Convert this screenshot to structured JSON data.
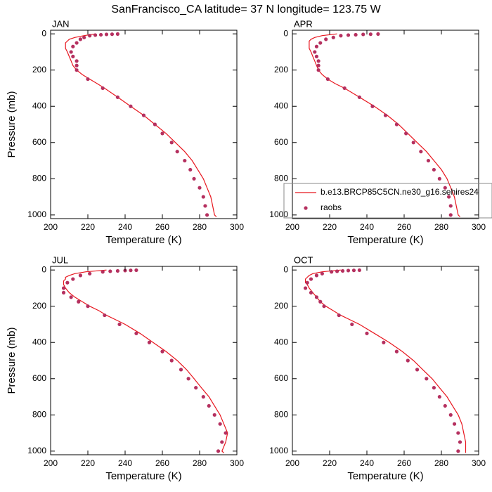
{
  "title": "SanFrancisco_CA  latitude= 37 N longitude= 123.75 W",
  "chart_data": [
    {
      "type": "line",
      "title": "JAN",
      "xlabel": "Temperature (K)",
      "ylabel": "Pressure (mb)",
      "xlim": [
        200,
        300
      ],
      "ylim": [
        1020,
        -20
      ],
      "xticks": [
        200,
        220,
        240,
        260,
        280,
        300
      ],
      "yticks": [
        0,
        200,
        400,
        600,
        800,
        1000
      ],
      "series": [
        {
          "mode": "line",
          "color": "#e8161e",
          "x": [
            224,
            218,
            213,
            210,
            209,
            208,
            208,
            208,
            208,
            209,
            210,
            211,
            212,
            214,
            217,
            221,
            225,
            229,
            236,
            243,
            250,
            256,
            262,
            267,
            272,
            276,
            279,
            282,
            284,
            286,
            287,
            288,
            289
          ],
          "y": [
            0,
            10,
            20,
            30,
            40,
            50,
            60,
            70,
            80,
            100,
            125,
            150,
            175,
            200,
            225,
            250,
            275,
            300,
            350,
            400,
            450,
            500,
            550,
            600,
            650,
            700,
            750,
            800,
            850,
            900,
            950,
            1000,
            1010
          ]
        },
        {
          "mode": "markers",
          "color": "#b5305f",
          "x": [
            236,
            233,
            230,
            227,
            224,
            221,
            218,
            216,
            214,
            212,
            211,
            212,
            214,
            214,
            214,
            220,
            228,
            236,
            243,
            250,
            256,
            260,
            265,
            268,
            272,
            275,
            277,
            280,
            282,
            283,
            284
          ],
          "y": [
            1,
            2,
            3,
            5,
            7,
            10,
            20,
            30,
            50,
            70,
            100,
            125,
            150,
            175,
            200,
            250,
            300,
            350,
            400,
            450,
            500,
            550,
            600,
            650,
            700,
            750,
            800,
            850,
            900,
            950,
            1000
          ]
        }
      ]
    },
    {
      "type": "line",
      "title": "APR",
      "xlabel": "Temperature (K)",
      "legend": true,
      "xlim": [
        200,
        300
      ],
      "ylim": [
        1020,
        -20
      ],
      "xticks": [
        200,
        220,
        240,
        260,
        280,
        300
      ],
      "yticks": [
        0,
        200,
        400,
        600,
        800,
        1000
      ],
      "series": [
        {
          "name": "b.e13.BRCP85C5CN.ne30_g16.sehires24",
          "mode": "line",
          "color": "#e8161e",
          "x": [
            224,
            216,
            212,
            210,
            209,
            209,
            209,
            209,
            209,
            210,
            211,
            212,
            213,
            214,
            216,
            219,
            223,
            228,
            236,
            244,
            251,
            257,
            262,
            267,
            272,
            276,
            280,
            283,
            285,
            287,
            288,
            289,
            290
          ],
          "y": [
            0,
            10,
            20,
            30,
            40,
            50,
            60,
            70,
            80,
            100,
            125,
            150,
            175,
            200,
            225,
            250,
            275,
            300,
            350,
            400,
            450,
            500,
            550,
            600,
            650,
            700,
            750,
            800,
            850,
            900,
            950,
            1000,
            1010
          ]
        },
        {
          "name": "raobs",
          "mode": "markers",
          "color": "#b5305f",
          "x": [
            246,
            242,
            238,
            234,
            230,
            226,
            222,
            218,
            215,
            213,
            212,
            213,
            214,
            214,
            214,
            219,
            228,
            236,
            243,
            250,
            256,
            261,
            265,
            269,
            273,
            276,
            279,
            282,
            284,
            285,
            285
          ],
          "y": [
            1,
            2,
            3,
            5,
            7,
            10,
            20,
            30,
            50,
            70,
            100,
            125,
            150,
            175,
            200,
            250,
            300,
            350,
            400,
            450,
            500,
            550,
            600,
            650,
            700,
            750,
            800,
            850,
            900,
            950,
            1000
          ]
        }
      ]
    },
    {
      "type": "line",
      "title": "JUL",
      "xlabel": "Temperature (K)",
      "ylabel": "Pressure (mb)",
      "xlim": [
        200,
        300
      ],
      "ylim": [
        1020,
        -20
      ],
      "xticks": [
        200,
        220,
        240,
        260,
        280,
        300
      ],
      "yticks": [
        0,
        200,
        400,
        600,
        800,
        1000
      ],
      "series": [
        {
          "mode": "line",
          "color": "#e8161e",
          "x": [
            230,
            219,
            213,
            210,
            208,
            208,
            207,
            207,
            207,
            208,
            210,
            213,
            217,
            221,
            226,
            230,
            235,
            240,
            248,
            255,
            262,
            268,
            273,
            277,
            281,
            285,
            288,
            291,
            293,
            295,
            294,
            292,
            293
          ],
          "y": [
            0,
            10,
            20,
            30,
            40,
            50,
            60,
            70,
            80,
            100,
            125,
            150,
            175,
            200,
            225,
            250,
            275,
            300,
            350,
            400,
            450,
            500,
            550,
            600,
            650,
            700,
            750,
            800,
            850,
            900,
            950,
            1000,
            1010
          ]
        },
        {
          "mode": "markers",
          "color": "#b5305f",
          "x": [
            246,
            243,
            240,
            236,
            232,
            228,
            221,
            216,
            212,
            209,
            207,
            207,
            211,
            215,
            220,
            229,
            237,
            246,
            253,
            260,
            265,
            270,
            274,
            278,
            282,
            285,
            288,
            291,
            294,
            292,
            290
          ],
          "y": [
            1,
            2,
            3,
            5,
            7,
            10,
            20,
            30,
            50,
            70,
            100,
            125,
            150,
            175,
            200,
            250,
            300,
            350,
            400,
            450,
            500,
            550,
            600,
            650,
            700,
            750,
            800,
            850,
            900,
            950,
            1000
          ]
        }
      ]
    },
    {
      "type": "line",
      "title": "OCT",
      "xlabel": "Temperature (K)",
      "xlim": [
        200,
        300
      ],
      "ylim": [
        1020,
        -20
      ],
      "xticks": [
        200,
        220,
        240,
        260,
        280,
        300
      ],
      "yticks": [
        0,
        200,
        400,
        600,
        800,
        1000
      ],
      "series": [
        {
          "mode": "line",
          "color": "#e8161e",
          "x": [
            226,
            216,
            211,
            209,
            208,
            207,
            207,
            207,
            208,
            209,
            211,
            213,
            215,
            218,
            222,
            226,
            231,
            236,
            244,
            252,
            259,
            265,
            270,
            275,
            279,
            283,
            286,
            289,
            291,
            292,
            293,
            293,
            293
          ],
          "y": [
            0,
            10,
            20,
            30,
            40,
            50,
            60,
            70,
            80,
            100,
            125,
            150,
            175,
            200,
            225,
            250,
            275,
            300,
            350,
            400,
            450,
            500,
            550,
            600,
            650,
            700,
            750,
            800,
            850,
            900,
            950,
            1000,
            1010
          ]
        },
        {
          "mode": "markers",
          "color": "#b5305f",
          "x": [
            236,
            233,
            230,
            227,
            224,
            221,
            216,
            213,
            210,
            208,
            207,
            210,
            213,
            215,
            217,
            225,
            232,
            240,
            249,
            256,
            262,
            267,
            272,
            276,
            279,
            282,
            285,
            287,
            289,
            290,
            289
          ],
          "y": [
            1,
            2,
            3,
            5,
            7,
            10,
            20,
            30,
            50,
            70,
            100,
            125,
            150,
            175,
            200,
            250,
            300,
            350,
            400,
            450,
            500,
            550,
            600,
            650,
            700,
            750,
            800,
            850,
            900,
            950,
            1000
          ]
        }
      ]
    }
  ]
}
